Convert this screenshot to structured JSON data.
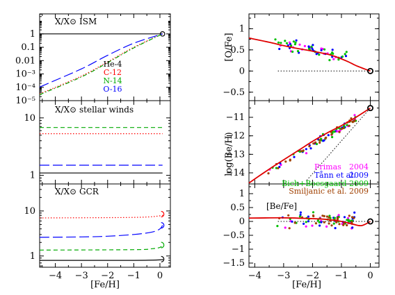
{
  "colors": {
    "he4": "#000000",
    "c12": "#ff0000",
    "n14": "#00aa00",
    "o16": "#0000ff",
    "model": "#e00000",
    "primas": "#ff00ff",
    "tan": "#0000ff",
    "boesgaard": "#00c000",
    "smiljanic": "#a04000"
  },
  "chart_data": [
    {
      "id": "ism",
      "type": "line",
      "panel_label": "X/X⊙ ISM",
      "ylabel": "",
      "xlim": [
        -4.6,
        0.4
      ],
      "ylim_log10": [
        -5,
        1.5
      ],
      "yscale": "log",
      "ytick_labels": [
        "1",
        "0.1",
        "0.01",
        "10⁻³",
        "10⁻⁴",
        "10⁻⁵"
      ],
      "ytick_values": [
        1,
        0.1,
        0.01,
        0.001,
        0.0001,
        1e-05
      ],
      "legend": [
        "He-4",
        "C-12",
        "N-14",
        "O-16"
      ],
      "series": [
        {
          "name": "He-4",
          "color": "#000000",
          "dash": "solid",
          "x": [
            -4.6,
            0.1
          ],
          "y": [
            1.0,
            1.0
          ]
        },
        {
          "name": "C-12",
          "color": "#ff0000",
          "dash": "dotted",
          "x": [
            -4.6,
            -3,
            -2,
            -1,
            0.1
          ],
          "y": [
            3.2e-05,
            0.0007,
            0.008,
            0.1,
            1.0
          ]
        },
        {
          "name": "N-14",
          "color": "#00aa00",
          "dash": "dashdot",
          "x": [
            -4.6,
            -3,
            -2,
            -1,
            0.1
          ],
          "y": [
            2.8e-05,
            0.0006,
            0.007,
            0.09,
            1.0
          ]
        },
        {
          "name": "O-16",
          "color": "#0000ff",
          "dash": "longdash",
          "x": [
            -4.6,
            -3,
            -2,
            -1,
            0.1
          ],
          "y": [
            0.000105,
            0.0024,
            0.025,
            0.2,
            1.0
          ]
        }
      ]
    },
    {
      "id": "winds",
      "type": "line",
      "panel_label": "X/X⊙ stellar winds",
      "xlim": [
        -4.6,
        0.4
      ],
      "ylim_log10": [
        -0.15,
        1.3
      ],
      "yscale": "log",
      "ytick_labels": [
        "10",
        "1"
      ],
      "ytick_values": [
        10,
        1
      ],
      "series": [
        {
          "name": "He-4",
          "color": "#000000",
          "dash": "solid",
          "x": [
            -4.6,
            0.1
          ],
          "y": [
            1.1,
            1.1
          ]
        },
        {
          "name": "C-12",
          "color": "#ff0000",
          "dash": "dotted",
          "x": [
            -4.6,
            0.1
          ],
          "y": [
            5.3,
            5.3
          ]
        },
        {
          "name": "N-14",
          "color": "#00aa00",
          "dash": "dashed",
          "x": [
            -4.6,
            0.1
          ],
          "y": [
            6.8,
            6.8
          ]
        },
        {
          "name": "O-16",
          "color": "#0000ff",
          "dash": "longdash",
          "x": [
            -4.6,
            0.1
          ],
          "y": [
            1.5,
            1.5
          ]
        }
      ]
    },
    {
      "id": "gcr",
      "type": "line",
      "panel_label": "X/X⊙ GCR",
      "xlim": [
        -4.6,
        0.4
      ],
      "ylim_log10": [
        -0.25,
        1.6
      ],
      "yscale": "log",
      "ytick_labels": [
        "10",
        "1"
      ],
      "ytick_values": [
        10,
        1
      ],
      "series": [
        {
          "name": "He-4",
          "color": "#000000",
          "dash": "solid",
          "x": [
            -4.6,
            -1,
            0,
            0.1
          ],
          "y": [
            0.8,
            0.8,
            0.82,
            0.85
          ]
        },
        {
          "name": "C-12",
          "color": "#ff0000",
          "dash": "dotted",
          "x": [
            -4.6,
            -1,
            0,
            0.1
          ],
          "y": [
            7.0,
            7.2,
            7.8,
            8.5
          ]
        },
        {
          "name": "N-14",
          "color": "#00aa00",
          "dash": "dashed",
          "x": [
            -4.6,
            -1,
            -0.3,
            0,
            0.1
          ],
          "y": [
            1.35,
            1.38,
            1.45,
            1.55,
            1.75
          ]
        },
        {
          "name": "O-16",
          "color": "#0000ff",
          "dash": "longdash",
          "x": [
            -4.6,
            -3,
            -2,
            -1,
            -0.3,
            0,
            0.1
          ],
          "y": [
            2.6,
            2.65,
            2.75,
            3.0,
            3.4,
            4.0,
            4.8
          ]
        }
      ]
    },
    {
      "id": "ofe",
      "type": "scatter",
      "ylabel": "[O/Fe]",
      "xlim": [
        -4.2,
        0.3
      ],
      "ylim": [
        -0.7,
        1.35
      ],
      "ytick_labels": [
        "1",
        "0.5",
        "0",
        "−0.5"
      ],
      "ytick_values": [
        1,
        0.5,
        0,
        -0.5
      ],
      "model": {
        "x": [
          -4.2,
          -3.5,
          -3,
          -2.5,
          -2,
          -1.5,
          -1.2,
          -0.8,
          -0.5,
          -0.2,
          0
        ],
        "y": [
          0.78,
          0.68,
          0.6,
          0.53,
          0.47,
          0.4,
          0.34,
          0.23,
          0.13,
          0.05,
          0
        ]
      },
      "solar_marker": {
        "x": 0,
        "y": 0
      }
    },
    {
      "id": "beh",
      "type": "scatter",
      "ylabel": "log(Be/H)",
      "xlim": [
        -4.2,
        0.3
      ],
      "ylim": [
        -14.6,
        -10.1
      ],
      "ytick_labels": [
        "−11",
        "−12",
        "−13",
        "−14"
      ],
      "ytick_values": [
        -11,
        -12,
        -13,
        -14
      ],
      "legend": [
        "Primas",
        "2004",
        "Tånn et al.",
        "2009",
        "Bich+Boesgaard 2009",
        "Smiljanic et al. 2009"
      ],
      "model": {
        "x": [
          -4.2,
          -3.5,
          -3,
          -2.5,
          -2,
          -1.5,
          -1,
          -0.5,
          0
        ],
        "y": [
          -14.55,
          -13.8,
          -13.3,
          -12.8,
          -12.3,
          -11.85,
          -11.45,
          -11.0,
          -10.5
        ]
      },
      "secondary_line": {
        "x": [
          -2.2,
          0
        ],
        "y": [
          -14.4,
          -10.5
        ]
      },
      "solar_marker": {
        "x": 0,
        "y": -10.5
      }
    },
    {
      "id": "befe",
      "type": "scatter",
      "ylabel": "",
      "panel_label": "[Be/Fe]",
      "xlabel": "[Fe/H]",
      "xlim": [
        -4.2,
        0.3
      ],
      "ylim": [
        -1.65,
        1.35
      ],
      "xtick_labels": [
        "−4",
        "−3",
        "−2",
        "−1",
        "0"
      ],
      "xtick_values": [
        -4,
        -3,
        -2,
        -1,
        0
      ],
      "ytick_labels": [
        "1",
        "0.5",
        "0",
        "−0.5",
        "−1",
        "−1.5"
      ],
      "ytick_values": [
        1,
        0.5,
        0,
        -0.5,
        -1,
        -1.5
      ],
      "model": {
        "x": [
          -4.2,
          -3,
          -2,
          -1.5,
          -1,
          -0.6,
          -0.3,
          0
        ],
        "y": [
          0.12,
          0.13,
          0.1,
          0.07,
          0.0,
          -0.1,
          -0.15,
          0
        ]
      },
      "solar_marker": {
        "x": 0,
        "y": 0
      }
    }
  ],
  "left_xaxis": {
    "xlabel": "[Fe/H]",
    "xtick_labels": [
      "−4",
      "−3",
      "−2",
      "−1",
      "0"
    ],
    "xtick_values": [
      -4,
      -3,
      -2,
      -1,
      0
    ]
  }
}
